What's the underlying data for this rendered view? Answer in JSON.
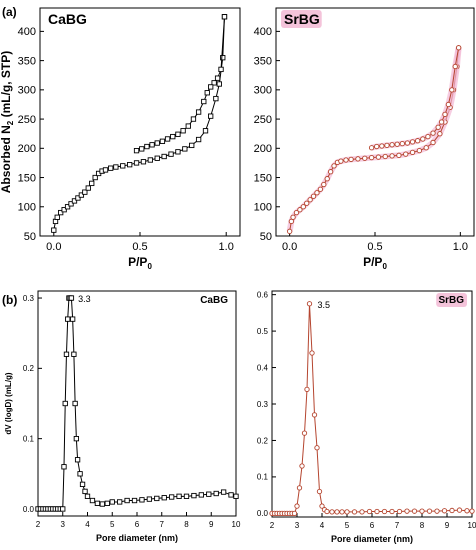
{
  "figure": {
    "panel_a_label": "(a)",
    "panel_b_label": "(b)"
  },
  "colors": {
    "cabg": "#000000",
    "srbg": "#b5452f",
    "srbg_glow": "#f2b8d4"
  },
  "chart_data": [
    {
      "id": "a_cabg",
      "type": "line",
      "title": "CaBG",
      "xlabel": "P/P",
      "xlabel_sub": "0",
      "ylabel": "Absorbed N",
      "ylabel_sub": "2",
      "ylabel_rest": " (mL/g, STP)",
      "xlim": [
        -0.08,
        1.08
      ],
      "ylim": [
        50,
        440
      ],
      "xticks": [
        "0.0",
        "0.5",
        "1.0"
      ],
      "yticks": [
        "50",
        "100",
        "150",
        "200",
        "250",
        "300",
        "350",
        "400"
      ],
      "marker": "square",
      "series": [
        {
          "name": "adsorption",
          "x": [
            0.0,
            0.01,
            0.02,
            0.04,
            0.06,
            0.08,
            0.1,
            0.12,
            0.14,
            0.16,
            0.18,
            0.2,
            0.22,
            0.24,
            0.26,
            0.28,
            0.3,
            0.33,
            0.36,
            0.4,
            0.44,
            0.48,
            0.52,
            0.56,
            0.6,
            0.64,
            0.68,
            0.72,
            0.76,
            0.8,
            0.84,
            0.88,
            0.91,
            0.94,
            0.96,
            0.98,
            0.99
          ],
          "y": [
            60,
            75,
            82,
            90,
            95,
            100,
            105,
            110,
            115,
            120,
            125,
            132,
            140,
            150,
            157,
            161,
            163,
            166,
            168,
            170,
            172,
            175,
            177,
            180,
            183,
            186,
            190,
            194,
            199,
            205,
            215,
            230,
            255,
            285,
            310,
            355,
            425
          ]
        },
        {
          "name": "desorption",
          "x": [
            0.99,
            0.97,
            0.95,
            0.93,
            0.91,
            0.89,
            0.87,
            0.84,
            0.81,
            0.78,
            0.75,
            0.72,
            0.69,
            0.66,
            0.63,
            0.6,
            0.57,
            0.54,
            0.51,
            0.48
          ],
          "y": [
            425,
            335,
            320,
            312,
            305,
            295,
            280,
            262,
            250,
            238,
            230,
            224,
            220,
            216,
            212,
            209,
            206,
            203,
            199,
            196
          ]
        }
      ]
    },
    {
      "id": "a_srbg",
      "type": "line",
      "title": "SrBG",
      "xlabel": "P/P",
      "xlabel_sub": "0",
      "xlim": [
        -0.08,
        1.08
      ],
      "ylim": [
        50,
        440
      ],
      "xticks": [
        "0.0",
        "0.5",
        "1.0"
      ],
      "yticks": [
        "50",
        "100",
        "150",
        "200",
        "250",
        "300",
        "350",
        "400"
      ],
      "marker": "circle",
      "series": [
        {
          "name": "adsorption",
          "x": [
            0.0,
            0.01,
            0.02,
            0.04,
            0.06,
            0.08,
            0.1,
            0.12,
            0.14,
            0.16,
            0.18,
            0.2,
            0.22,
            0.24,
            0.26,
            0.28,
            0.3,
            0.33,
            0.36,
            0.4,
            0.44,
            0.48,
            0.52,
            0.56,
            0.6,
            0.64,
            0.68,
            0.72,
            0.76,
            0.8,
            0.84,
            0.88,
            0.91,
            0.94,
            0.96,
            0.98,
            0.99
          ],
          "y": [
            58,
            75,
            82,
            90,
            95,
            100,
            106,
            112,
            118,
            124,
            130,
            138,
            148,
            160,
            170,
            176,
            178,
            180,
            181,
            182,
            183,
            184,
            185,
            186,
            187,
            188,
            190,
            193,
            196,
            201,
            210,
            225,
            245,
            270,
            300,
            340,
            372
          ]
        },
        {
          "name": "desorption",
          "x": [
            0.99,
            0.97,
            0.95,
            0.93,
            0.91,
            0.89,
            0.87,
            0.84,
            0.81,
            0.78,
            0.75,
            0.72,
            0.69,
            0.66,
            0.63,
            0.6,
            0.57,
            0.54,
            0.51,
            0.48
          ],
          "y": [
            372,
            340,
            300,
            275,
            258,
            245,
            236,
            226,
            220,
            216,
            213,
            211,
            209,
            208,
            207,
            206,
            205,
            204,
            203,
            201
          ]
        }
      ]
    },
    {
      "id": "b_cabg",
      "type": "line",
      "title": "CaBG",
      "xlabel": "Pore diameter (nm)",
      "ylabel": "dV (logD) (mL/g)",
      "xlim": [
        2,
        10
      ],
      "ylim": [
        -0.01,
        0.31
      ],
      "xticks": [
        "2",
        "3",
        "4",
        "5",
        "6",
        "7",
        "8",
        "9",
        "10"
      ],
      "yticks": [
        "0.0",
        "0.1",
        "0.2",
        "0.3"
      ],
      "marker": "square",
      "annotation": {
        "text": "3.3",
        "x": 3.3,
        "y": 0.3
      },
      "series": [
        {
          "name": "CaBG",
          "x": [
            2.0,
            2.1,
            2.2,
            2.3,
            2.4,
            2.5,
            2.6,
            2.7,
            2.8,
            2.9,
            3.0,
            3.05,
            3.1,
            3.15,
            3.2,
            3.25,
            3.3,
            3.35,
            3.4,
            3.45,
            3.5,
            3.55,
            3.6,
            3.7,
            3.8,
            3.9,
            4.0,
            4.2,
            4.4,
            4.6,
            4.8,
            5.0,
            5.3,
            5.6,
            5.9,
            6.2,
            6.5,
            6.8,
            7.1,
            7.4,
            7.7,
            8.0,
            8.3,
            8.6,
            8.9,
            9.2,
            9.5,
            9.8,
            10.0
          ],
          "y": [
            0.0,
            0.0,
            0.0,
            0.0,
            0.0,
            0.0,
            0.0,
            0.0,
            0.0,
            0.0,
            0.0,
            0.06,
            0.15,
            0.22,
            0.27,
            0.3,
            0.3,
            0.3,
            0.27,
            0.22,
            0.15,
            0.1,
            0.07,
            0.05,
            0.035,
            0.025,
            0.018,
            0.012,
            0.008,
            0.007,
            0.008,
            0.01,
            0.01,
            0.012,
            0.012,
            0.013,
            0.014,
            0.015,
            0.016,
            0.017,
            0.018,
            0.018,
            0.019,
            0.02,
            0.021,
            0.022,
            0.024,
            0.02,
            0.018
          ]
        }
      ]
    },
    {
      "id": "b_srbg",
      "type": "line",
      "title": "SrBG",
      "xlabel": "Pore diameter (nm)",
      "xlim": [
        2,
        10
      ],
      "ylim": [
        -0.01,
        0.61
      ],
      "xticks": [
        "2",
        "3",
        "4",
        "5",
        "6",
        "7",
        "8",
        "9",
        "10"
      ],
      "yticks": [
        "0.0",
        "0.1",
        "0.2",
        "0.3",
        "0.4",
        "0.5",
        "0.6"
      ],
      "marker": "circle",
      "annotation": {
        "text": "3.5",
        "x": 3.5,
        "y": 0.575
      },
      "series": [
        {
          "name": "SrBG",
          "x": [
            2.0,
            2.1,
            2.2,
            2.3,
            2.4,
            2.5,
            2.6,
            2.7,
            2.8,
            2.9,
            3.0,
            3.1,
            3.2,
            3.3,
            3.4,
            3.5,
            3.6,
            3.7,
            3.8,
            3.9,
            4.0,
            4.1,
            4.2,
            4.4,
            4.6,
            4.8,
            5.0,
            5.3,
            5.6,
            5.9,
            6.2,
            6.5,
            6.8,
            7.1,
            7.4,
            7.7,
            8.0,
            8.3,
            8.6,
            8.9,
            9.2,
            9.5,
            9.8,
            10.0
          ],
          "y": [
            0.0,
            0.0,
            0.0,
            0.0,
            0.0,
            0.0,
            0.0,
            0.0,
            0.0,
            0.0,
            0.02,
            0.07,
            0.13,
            0.22,
            0.34,
            0.575,
            0.44,
            0.27,
            0.18,
            0.06,
            0.02,
            0.01,
            0.005,
            0.004,
            0.004,
            0.004,
            0.004,
            0.004,
            0.004,
            0.005,
            0.005,
            0.005,
            0.005,
            0.005,
            0.006,
            0.006,
            0.006,
            0.006,
            0.006,
            0.007,
            0.008,
            0.009,
            0.007,
            0.006
          ]
        }
      ]
    }
  ]
}
